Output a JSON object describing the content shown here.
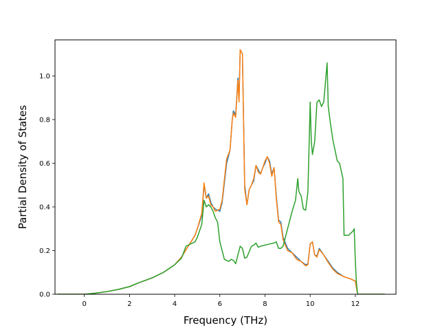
{
  "chart_data": {
    "type": "line",
    "title": "",
    "xlabel": "Frequency (THz)",
    "ylabel": "Partial Density of States",
    "xlim": [
      -1.3,
      13.8
    ],
    "ylim": [
      0.0,
      1.165
    ],
    "xticks": [
      0,
      2,
      4,
      6,
      8,
      10,
      12
    ],
    "xtick_labels": [
      "0",
      "2",
      "4",
      "6",
      "8",
      "10",
      "12"
    ],
    "yticks": [
      0.0,
      0.2,
      0.4,
      0.6,
      0.8,
      1.0
    ],
    "ytick_labels": [
      "0.0",
      "0.2",
      "0.4",
      "0.6",
      "0.8",
      "1.0"
    ],
    "grid": false,
    "legend": "none",
    "series": [
      {
        "color": "#1f77b4",
        "x": [
          -1.2,
          0,
          0.5,
          1.0,
          1.5,
          2.0,
          2.4,
          3.0,
          3.5,
          4.0,
          4.3,
          4.6,
          4.9,
          5.0,
          5.2,
          5.3,
          5.4,
          5.5,
          5.6,
          5.7,
          5.8,
          6.0,
          6.1,
          6.3,
          6.45,
          6.55,
          6.6,
          6.7,
          6.8,
          6.85,
          6.9,
          7.0,
          7.1,
          7.2,
          7.3,
          7.4,
          7.5,
          7.6,
          7.7,
          7.8,
          7.9,
          8.0,
          8.1,
          8.2,
          8.3,
          8.4,
          8.5,
          8.6,
          8.7,
          8.8,
          9.0,
          9.2,
          9.4,
          9.6,
          9.8,
          9.9,
          10.0,
          10.1,
          10.2,
          10.3,
          10.4,
          10.6,
          10.8,
          11.0,
          11.2,
          11.5,
          11.8,
          12.0,
          12.1,
          13.3
        ],
        "y": [
          0.0,
          0.0,
          0.005,
          0.012,
          0.022,
          0.035,
          0.052,
          0.075,
          0.1,
          0.135,
          0.17,
          0.22,
          0.27,
          0.3,
          0.36,
          0.5,
          0.44,
          0.46,
          0.42,
          0.4,
          0.39,
          0.38,
          0.42,
          0.6,
          0.66,
          0.8,
          0.84,
          0.82,
          0.99,
          0.89,
          1.12,
          1.1,
          0.5,
          0.41,
          0.48,
          0.5,
          0.52,
          0.59,
          0.57,
          0.55,
          0.58,
          0.6,
          0.63,
          0.61,
          0.55,
          0.58,
          0.45,
          0.34,
          0.33,
          0.26,
          0.21,
          0.19,
          0.17,
          0.15,
          0.135,
          0.14,
          0.23,
          0.24,
          0.18,
          0.175,
          0.21,
          0.18,
          0.15,
          0.12,
          0.1,
          0.08,
          0.07,
          0.06,
          0.0,
          0.0
        ]
      },
      {
        "color": "#ff7f0e",
        "x": [
          -1.2,
          0,
          0.5,
          1.0,
          1.5,
          2.0,
          2.4,
          3.0,
          3.5,
          4.0,
          4.3,
          4.6,
          4.9,
          5.0,
          5.2,
          5.3,
          5.4,
          5.5,
          5.6,
          5.7,
          5.8,
          6.0,
          6.1,
          6.3,
          6.45,
          6.55,
          6.6,
          6.7,
          6.8,
          6.85,
          6.9,
          7.0,
          7.1,
          7.2,
          7.3,
          7.4,
          7.5,
          7.6,
          7.7,
          7.8,
          7.9,
          8.0,
          8.1,
          8.2,
          8.3,
          8.4,
          8.5,
          8.6,
          8.7,
          8.8,
          9.0,
          9.2,
          9.4,
          9.6,
          9.8,
          9.9,
          10.0,
          10.1,
          10.2,
          10.3,
          10.4,
          10.6,
          10.8,
          11.0,
          11.2,
          11.5,
          11.8,
          12.0,
          12.1,
          13.3
        ],
        "y": [
          0.0,
          0.0,
          0.005,
          0.012,
          0.022,
          0.035,
          0.052,
          0.075,
          0.1,
          0.135,
          0.17,
          0.22,
          0.27,
          0.3,
          0.37,
          0.51,
          0.44,
          0.45,
          0.41,
          0.4,
          0.38,
          0.39,
          0.43,
          0.62,
          0.66,
          0.8,
          0.83,
          0.81,
          0.98,
          0.88,
          1.12,
          1.1,
          0.48,
          0.41,
          0.48,
          0.5,
          0.53,
          0.59,
          0.56,
          0.55,
          0.58,
          0.61,
          0.63,
          0.6,
          0.54,
          0.58,
          0.44,
          0.33,
          0.32,
          0.25,
          0.2,
          0.19,
          0.16,
          0.15,
          0.13,
          0.135,
          0.23,
          0.24,
          0.18,
          0.17,
          0.205,
          0.18,
          0.145,
          0.115,
          0.095,
          0.08,
          0.07,
          0.06,
          0.0,
          0.0
        ]
      },
      {
        "color": "#2ca02c",
        "x": [
          -1.2,
          0,
          0.5,
          1.0,
          1.5,
          2.0,
          2.4,
          3.0,
          3.5,
          4.0,
          4.3,
          4.5,
          4.9,
          5.0,
          5.1,
          5.2,
          5.3,
          5.4,
          5.5,
          5.6,
          5.7,
          5.8,
          5.9,
          6.0,
          6.2,
          6.3,
          6.4,
          6.5,
          6.6,
          6.7,
          6.8,
          6.9,
          7.0,
          7.1,
          7.2,
          7.4,
          7.5,
          7.6,
          7.7,
          7.8,
          8.0,
          8.2,
          8.4,
          8.5,
          8.6,
          8.7,
          8.8,
          9.0,
          9.2,
          9.35,
          9.45,
          9.5,
          9.6,
          9.7,
          9.8,
          9.9,
          10.0,
          10.05,
          10.1,
          10.2,
          10.3,
          10.4,
          10.5,
          10.6,
          10.75,
          10.8,
          10.9,
          11.0,
          11.2,
          11.3,
          11.45,
          11.5,
          11.6,
          11.7,
          11.8,
          11.9,
          11.95,
          12.0,
          12.05,
          12.1,
          13.3
        ],
        "y": [
          0.0,
          0.0,
          0.005,
          0.012,
          0.022,
          0.035,
          0.052,
          0.075,
          0.1,
          0.135,
          0.165,
          0.22,
          0.24,
          0.26,
          0.29,
          0.32,
          0.43,
          0.4,
          0.41,
          0.4,
          0.38,
          0.35,
          0.33,
          0.24,
          0.16,
          0.155,
          0.15,
          0.16,
          0.155,
          0.14,
          0.18,
          0.22,
          0.21,
          0.165,
          0.17,
          0.22,
          0.225,
          0.235,
          0.215,
          0.22,
          0.225,
          0.23,
          0.235,
          0.24,
          0.21,
          0.21,
          0.22,
          0.3,
          0.38,
          0.43,
          0.53,
          0.47,
          0.45,
          0.39,
          0.385,
          0.47,
          0.88,
          0.7,
          0.64,
          0.7,
          0.88,
          0.89,
          0.86,
          0.88,
          1.06,
          0.86,
          0.78,
          0.71,
          0.61,
          0.6,
          0.53,
          0.27,
          0.27,
          0.27,
          0.28,
          0.29,
          0.3,
          0.15,
          0.05,
          0.0,
          0.0
        ]
      }
    ]
  }
}
